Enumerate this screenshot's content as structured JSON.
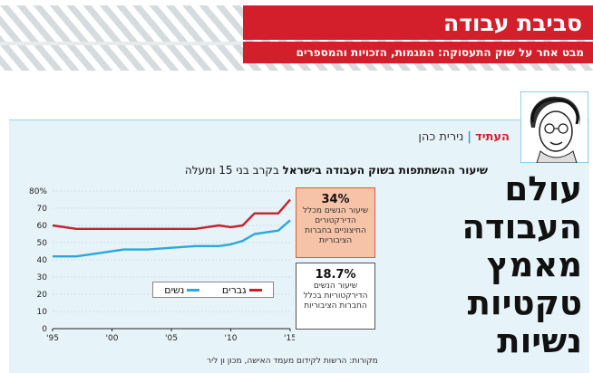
{
  "header": {
    "section_title": "סביבת עבודה",
    "section_subtitle": "מבט אחר על שוק התעסוקה: המגמות, הזכויות והמספרים",
    "accent_color": "#d31f2b",
    "stripe_color": "#d8dde0"
  },
  "article": {
    "kicker_label": "העתיד",
    "kicker_separator": "|",
    "author": "נירית כהן",
    "headline_lines": [
      "עולם",
      "העבודה",
      "מאמץ",
      "טקטיות",
      "נשיות"
    ]
  },
  "chart_data": {
    "type": "line",
    "title_bold": "שיעור ההשתתפות בשוק העבודה בישראל",
    "title_rest": "בקרב בני 15 ומעלה",
    "x": [
      1995,
      1997,
      1999,
      2001,
      2003,
      2005,
      2007,
      2008,
      2009,
      2010,
      2011,
      2012,
      2013,
      2014,
      2015
    ],
    "x_tick_labels": [
      "'95",
      "'00",
      "'05",
      "'10",
      "'15"
    ],
    "x_ticks": [
      1995,
      2000,
      2005,
      2010,
      2015
    ],
    "y_tick_labels": [
      "0",
      "10",
      "20",
      "30",
      "40",
      "50",
      "60",
      "70",
      "80%"
    ],
    "ylim": [
      0,
      80
    ],
    "series": [
      {
        "name": "גברים",
        "color": "#c8202a",
        "values": [
          60,
          58,
          58,
          58,
          58,
          58,
          58,
          59,
          60,
          59,
          60,
          67,
          67,
          67,
          75
        ]
      },
      {
        "name": "נשים",
        "color": "#2aa8dc",
        "values": [
          42,
          42,
          44,
          46,
          46,
          47,
          48,
          48,
          48,
          49,
          51,
          55,
          56,
          57,
          63
        ]
      }
    ],
    "source": "מקורות: הרשות לקידום מעמד האישה, מכון ון ליר",
    "grid": true
  },
  "callouts": [
    {
      "value": "34%",
      "text": "שיעור הנשים מכלל הדירקטורים החיצוניים בחברות הציבוריות"
    },
    {
      "value": "18.7%",
      "text": "שיעור הנשים הדירקטוריות בכלל החברות הציבוריות"
    }
  ]
}
